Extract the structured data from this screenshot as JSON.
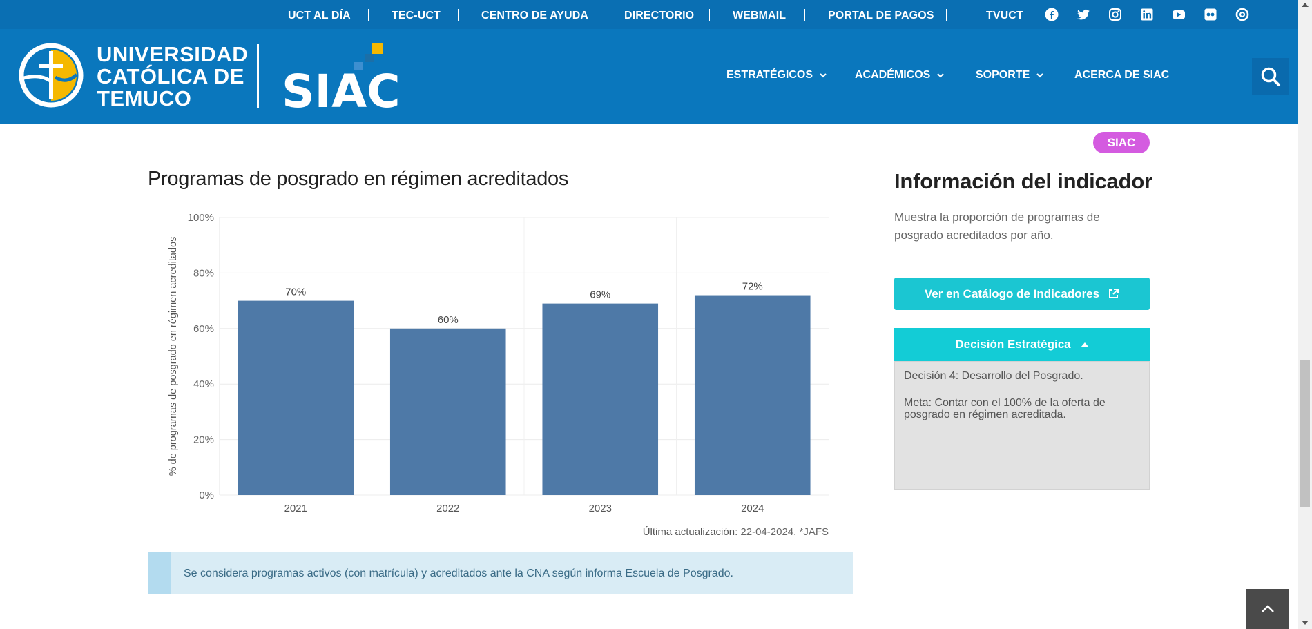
{
  "topbar": {
    "links": [
      "UCT AL DÍA",
      "TEC-UCT",
      "CENTRO DE AYUDA",
      "DIRECTORIO",
      "WEBMAIL",
      "PORTAL DE PAGOS",
      "TVUCT"
    ],
    "social_icons": [
      "facebook-icon",
      "twitter-icon",
      "instagram-icon",
      "linkedin-icon",
      "youtube-icon",
      "flickr-icon",
      "issuu-icon"
    ]
  },
  "header": {
    "university_lines": [
      "UNIVERSIDAD",
      "CATÓLICA DE",
      "TEMUCO"
    ],
    "siac_logo_text": "SIAC",
    "nav": [
      {
        "label": "ESTRATÉGICOS",
        "dropdown": true
      },
      {
        "label": "ACADÉMICOS",
        "dropdown": true
      },
      {
        "label": "SOPORTE",
        "dropdown": true
      },
      {
        "label": "ACERCA DE SIAC",
        "dropdown": false
      }
    ],
    "search_icon": "search-icon"
  },
  "main": {
    "title": "Programas de posgrado en régimen acreditados",
    "update_label": "Última actualización",
    "update_value": ": 22-04-2024, *JAFS",
    "note": "Se considera programas activos (con matrícula) y acreditados ante la CNA según informa Escuela de Posgrado."
  },
  "chart_data": {
    "type": "bar",
    "categories": [
      "2021",
      "2022",
      "2023",
      "2024"
    ],
    "values": [
      70,
      60,
      69,
      72
    ],
    "value_labels": [
      "70%",
      "60%",
      "69%",
      "72%"
    ],
    "ylabel": "% de programas de posgrado en régimen acreditados",
    "xlabel": "",
    "ylim": [
      0,
      100
    ],
    "yticks": [
      "0%",
      "20%",
      "40%",
      "60%",
      "80%",
      "100%"
    ],
    "bar_color": "#4e79a7",
    "grid": true
  },
  "sidebar": {
    "badge": "SIAC",
    "title": "Información del indicador",
    "description": "Muestra la proporción de programas de posgrado acreditados por año.",
    "catalog_button": "Ver en Catálogo de Indicadores",
    "accordion_title": "Decisión Estratégica",
    "decision": "Decisión 4: Desarrollo del Posgrado.",
    "goal": "Meta: Contar con el 100% de la oferta de posgrado en régimen acreditada."
  },
  "colors": {
    "topbar": "#0a6fb3",
    "header": "#0a77bd",
    "accent_cyan": "#1bc6d2",
    "badge": "#d45be0",
    "siac_yellow": "#f5b800"
  }
}
